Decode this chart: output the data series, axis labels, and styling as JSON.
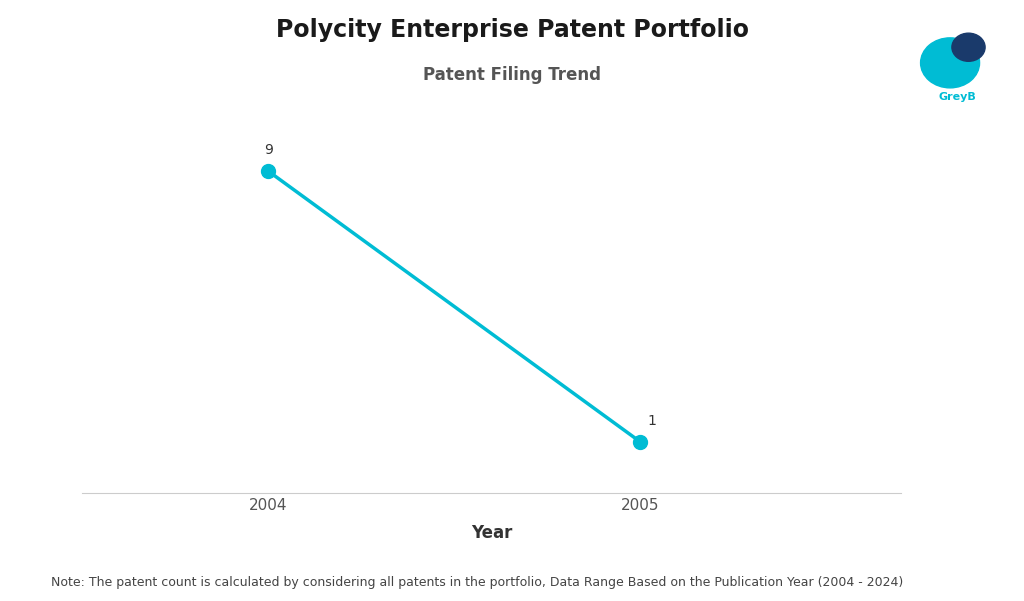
{
  "title": "Polycity Enterprise Patent Portfolio",
  "subtitle": "Patent Filing Trend",
  "xlabel": "Year",
  "years": [
    2004,
    2005
  ],
  "values": [
    9,
    1
  ],
  "line_color": "#00BCD4",
  "marker_color": "#00BCD4",
  "marker_size": 10,
  "line_width": 2.5,
  "ylim": [
    -0.5,
    10.5
  ],
  "xlim": [
    2003.5,
    2005.7
  ],
  "note": "Note: The patent count is calculated by considering all patents in the portfolio, Data Range Based on the Publication Year (2004 - 2024)",
  "background_color": "#ffffff",
  "title_fontsize": 17,
  "subtitle_fontsize": 12,
  "note_fontsize": 9,
  "xlabel_fontsize": 12,
  "label_fontsize": 10,
  "logo_teal": "#00BCD4",
  "logo_blue": "#1a3a6b",
  "greyb_color": "#00BCD4"
}
